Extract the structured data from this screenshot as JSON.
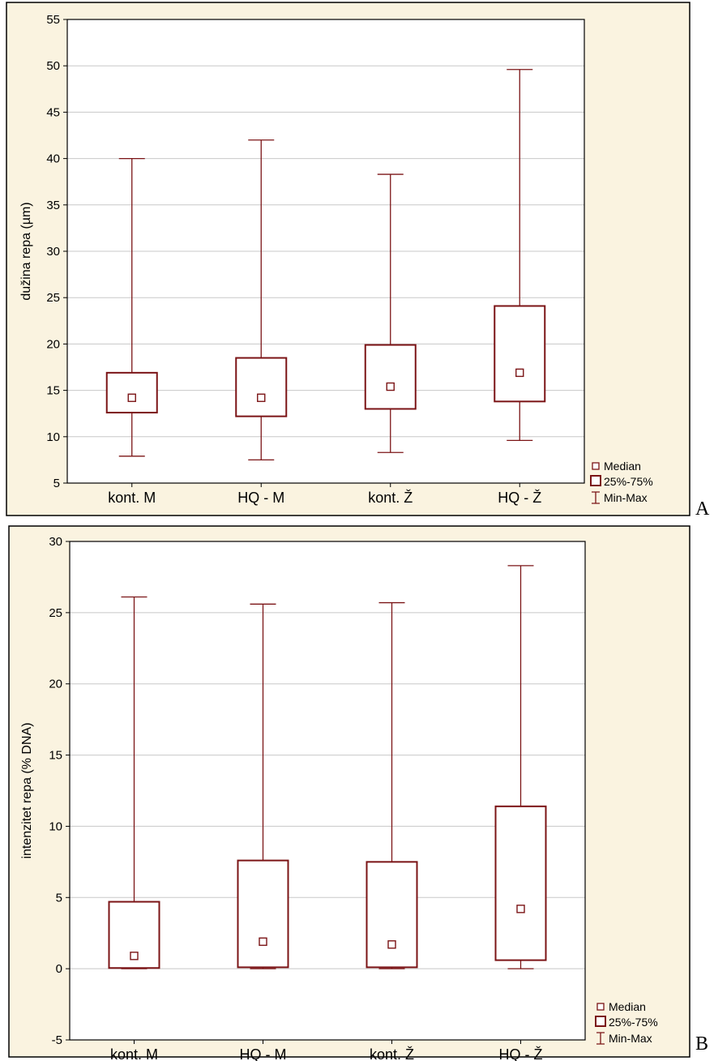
{
  "chart_data": [
    {
      "type": "box",
      "panel_letter": "A",
      "ylabel": "dužina repa (µm)",
      "ylim": [
        5,
        55
      ],
      "yticks": [
        5,
        10,
        15,
        20,
        25,
        30,
        35,
        40,
        45,
        50,
        55
      ],
      "categories": [
        "kont. M",
        "HQ - M",
        "kont. Ž",
        "HQ - Ž"
      ],
      "median": [
        14.2,
        14.2,
        15.4,
        16.9
      ],
      "q1": [
        12.6,
        12.2,
        13.0,
        13.8
      ],
      "q3": [
        16.9,
        18.5,
        19.9,
        24.1
      ],
      "min": [
        7.9,
        7.5,
        8.3,
        9.6
      ],
      "max": [
        40.0,
        42.0,
        38.3,
        49.6
      ],
      "grid": true,
      "legend": [
        "Median",
        "25%-75%",
        "Min-Max"
      ],
      "legend_position": "bottom-right",
      "colors": {
        "mark": "#7b1416",
        "background": "#faf3e0",
        "plot": "#ffffff",
        "grid": "#c8c8c8"
      }
    },
    {
      "type": "box",
      "panel_letter": "B",
      "ylabel": "intenzitet repa (% DNA)",
      "ylim": [
        -5,
        30
      ],
      "yticks": [
        -5,
        0,
        5,
        10,
        15,
        20,
        25,
        30
      ],
      "categories": [
        "kont. M",
        "HQ - M",
        "kont. Ž",
        "HQ - Ž"
      ],
      "median": [
        0.9,
        1.9,
        1.7,
        4.2
      ],
      "q1": [
        0.05,
        0.1,
        0.1,
        0.6
      ],
      "q3": [
        4.7,
        7.6,
        7.5,
        11.4
      ],
      "min": [
        0.0,
        0.0,
        0.0,
        0.0
      ],
      "max": [
        26.1,
        25.6,
        25.7,
        28.3
      ],
      "grid": true,
      "legend": [
        "Median",
        "25%-75%",
        "Min-Max"
      ],
      "legend_position": "bottom-right",
      "colors": {
        "mark": "#7b1416",
        "background": "#faf3e0",
        "plot": "#ffffff",
        "grid": "#c8c8c8"
      }
    }
  ]
}
